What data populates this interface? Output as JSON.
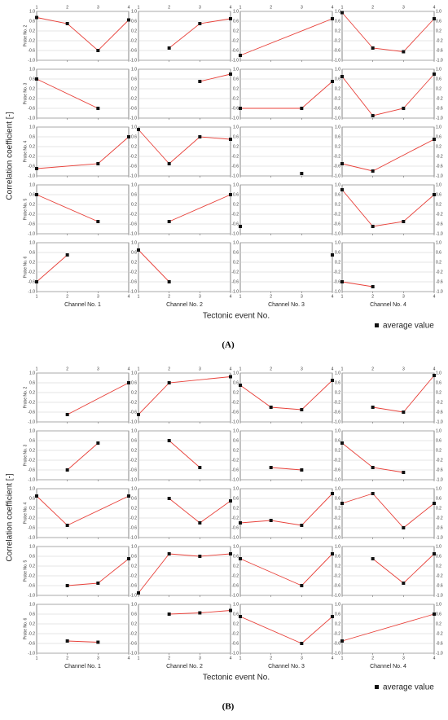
{
  "chart_data": [
    {
      "type": "line",
      "caption": "(A)",
      "y_label": "Correlation coefficient [-]",
      "x_label": "Tectonic event No.",
      "legend": "average value",
      "color": "#e8413a",
      "marker_color": "#111111",
      "grid": true,
      "xlim": [
        1,
        4
      ],
      "xticks": [
        1,
        2,
        3,
        4
      ],
      "ylim": [
        -1,
        1
      ],
      "yticks": [
        {
          "value": 1,
          "label": "1.0"
        },
        0.6,
        0.2,
        -0.2,
        -0.6,
        {
          "value": -1,
          "label": "-1.0"
        }
      ],
      "rows": [
        "Probe No. 2",
        "Probe No. 3",
        "Probe No. 4",
        "Probe No. 5",
        "Probe No. 6"
      ],
      "columns": [
        "Channel No. 1",
        "Channel No. 2",
        "Channel No. 3",
        "Channel No. 4"
      ],
      "panels": [
        [
          {
            "x": [
              1,
              2,
              3,
              4
            ],
            "values": [
              0.75,
              0.5,
              -0.6,
              0.65
            ]
          },
          {
            "x": [
              2,
              3,
              4
            ],
            "values": [
              -0.5,
              0.5,
              0.7
            ]
          },
          {
            "x": [
              1,
              4
            ],
            "values": [
              -0.8,
              0.7
            ]
          },
          {
            "x": [
              1,
              2,
              3,
              4
            ],
            "values": [
              0.95,
              -0.5,
              -0.65,
              0.7
            ]
          }
        ],
        [
          {
            "x": [
              1,
              3
            ],
            "values": [
              0.6,
              -0.6
            ]
          },
          {
            "x": [
              3,
              4
            ],
            "values": [
              0.5,
              0.8
            ]
          },
          {
            "x": [
              1,
              3,
              4
            ],
            "values": [
              -0.6,
              -0.6,
              0.5
            ]
          },
          {
            "x": [
              1,
              2,
              3,
              4
            ],
            "values": [
              0.7,
              -0.9,
              -0.6,
              0.8
            ]
          }
        ],
        [
          {
            "x": [
              1,
              3,
              4
            ],
            "values": [
              -0.7,
              -0.5,
              0.6
            ]
          },
          {
            "x": [
              1,
              2,
              3,
              4
            ],
            "values": [
              0.9,
              -0.5,
              0.6,
              0.5
            ]
          },
          {
            "x": [
              3
            ],
            "values": [
              -0.9
            ]
          },
          {
            "x": [
              1,
              2,
              4
            ],
            "values": [
              -0.5,
              -0.8,
              0.5
            ]
          }
        ],
        [
          {
            "x": [
              1,
              3
            ],
            "values": [
              0.6,
              -0.5
            ]
          },
          {
            "x": [
              2,
              4
            ],
            "values": [
              -0.5,
              0.6
            ]
          },
          {
            "x": [
              1
            ],
            "values": [
              -0.7
            ]
          },
          {
            "x": [
              1,
              2,
              3,
              4
            ],
            "values": [
              0.8,
              -0.7,
              -0.5,
              0.6
            ]
          }
        ],
        [
          {
            "x": [
              1,
              2
            ],
            "values": [
              -0.6,
              0.5
            ]
          },
          {
            "x": [
              1,
              2
            ],
            "values": [
              0.7,
              -0.6
            ]
          },
          {
            "x": [
              4
            ],
            "values": [
              0.5
            ]
          },
          {
            "x": [
              1,
              2
            ],
            "values": [
              -0.6,
              -0.8
            ]
          }
        ]
      ]
    },
    {
      "type": "line",
      "caption": "(B)",
      "y_label": "Correlation coefficient [-]",
      "x_label": "Tectonic event No.",
      "legend": "average value",
      "color": "#e8413a",
      "marker_color": "#111111",
      "grid": true,
      "xlim": [
        1,
        4
      ],
      "xticks": [
        1,
        2,
        3,
        4
      ],
      "ylim": [
        -1,
        1
      ],
      "yticks": [
        {
          "value": 1,
          "label": "1.0"
        },
        0.6,
        0.2,
        -0.2,
        -0.6,
        {
          "value": -1,
          "label": "-1.0"
        }
      ],
      "rows": [
        "Probe No. 2",
        "Probe No. 3",
        "Probe No. 4",
        "Probe No. 5",
        "Probe No. 6"
      ],
      "columns": [
        "Channel No. 1",
        "Channel No. 2",
        "Channel No. 3",
        "Channel No. 4"
      ],
      "panels": [
        [
          {
            "x": [
              2,
              4
            ],
            "values": [
              -0.7,
              0.6
            ]
          },
          {
            "x": [
              1,
              2,
              4
            ],
            "values": [
              -0.7,
              0.6,
              0.85
            ]
          },
          {
            "x": [
              1,
              2,
              3,
              4
            ],
            "values": [
              0.5,
              -0.4,
              -0.5,
              0.7
            ]
          },
          {
            "x": [
              2,
              3,
              4
            ],
            "values": [
              -0.4,
              -0.6,
              0.9
            ]
          }
        ],
        [
          {
            "x": [
              2,
              3
            ],
            "values": [
              -0.6,
              0.5
            ]
          },
          {
            "x": [
              2,
              3
            ],
            "values": [
              0.6,
              -0.5
            ]
          },
          {
            "x": [
              2,
              3
            ],
            "values": [
              -0.5,
              -0.6
            ]
          },
          {
            "x": [
              1,
              2,
              3
            ],
            "values": [
              0.5,
              -0.5,
              -0.7
            ]
          }
        ],
        [
          {
            "x": [
              1,
              2,
              4
            ],
            "values": [
              0.7,
              -0.5,
              0.7
            ]
          },
          {
            "x": [
              2,
              3,
              4
            ],
            "values": [
              0.6,
              -0.4,
              0.5
            ]
          },
          {
            "x": [
              1,
              2,
              3,
              4
            ],
            "values": [
              -0.4,
              -0.3,
              -0.5,
              0.8
            ]
          },
          {
            "x": [
              1,
              2,
              3,
              4
            ],
            "values": [
              0.4,
              0.8,
              -0.6,
              0.4
            ]
          }
        ],
        [
          {
            "x": [
              2,
              3,
              4
            ],
            "values": [
              -0.6,
              -0.5,
              0.5
            ]
          },
          {
            "x": [
              1,
              2,
              3,
              4
            ],
            "values": [
              -0.9,
              0.7,
              0.6,
              0.7
            ]
          },
          {
            "x": [
              1,
              3,
              4
            ],
            "values": [
              0.5,
              -0.6,
              0.7
            ]
          },
          {
            "x": [
              2,
              3,
              4
            ],
            "values": [
              0.5,
              -0.5,
              0.7
            ]
          }
        ],
        [
          {
            "x": [
              2,
              3
            ],
            "values": [
              -0.5,
              -0.55
            ]
          },
          {
            "x": [
              2,
              3,
              4
            ],
            "values": [
              0.6,
              0.65,
              0.75
            ]
          },
          {
            "x": [
              1,
              3,
              4
            ],
            "values": [
              0.5,
              -0.6,
              0.5
            ]
          },
          {
            "x": [
              1,
              4
            ],
            "values": [
              -0.5,
              0.6
            ]
          }
        ]
      ]
    }
  ]
}
